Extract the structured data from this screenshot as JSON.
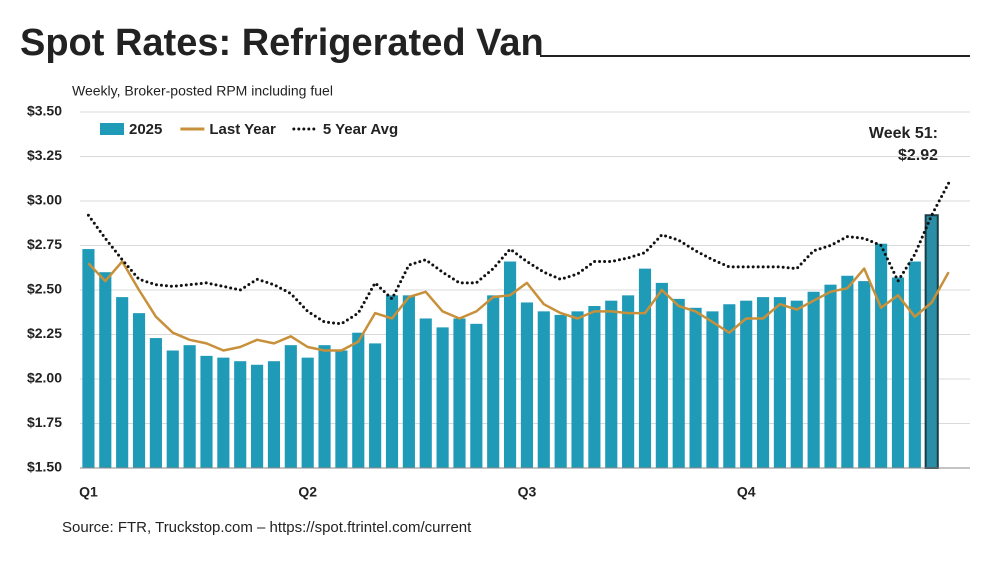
{
  "chart_data": {
    "type": "bar",
    "title": "Spot Rates: Refrigerated Van",
    "subtitle": "Weekly, Broker-posted RPM including fuel",
    "source": "Source: FTR, Truckstop.com – https://spot.ftrintel.com/current",
    "annotation": [
      "Week 51:",
      "$2.92"
    ],
    "categories": [
      "Q1",
      null,
      null,
      null,
      null,
      null,
      null,
      null,
      null,
      null,
      null,
      null,
      null,
      "Q2",
      null,
      null,
      null,
      null,
      null,
      null,
      null,
      null,
      null,
      null,
      null,
      null,
      "Q3",
      null,
      null,
      null,
      null,
      null,
      null,
      null,
      null,
      null,
      null,
      null,
      null,
      "Q4",
      null,
      null,
      null,
      null,
      null,
      null,
      null,
      null,
      null,
      null,
      null,
      null
    ],
    "ylim": [
      1.5,
      3.5
    ],
    "yticks": [
      {
        "value": 1.5,
        "label": "$1.50"
      },
      {
        "value": 1.75,
        "label": "$1.75"
      },
      {
        "value": 2.0,
        "label": "$2.00"
      },
      {
        "value": 2.25,
        "label": "$2.25"
      },
      {
        "value": 2.5,
        "label": "$2.50"
      },
      {
        "value": 2.75,
        "label": "$2.75"
      },
      {
        "value": 3.0,
        "label": "$3.00"
      },
      {
        "value": 3.25,
        "label": "$3.25"
      },
      {
        "value": 3.5,
        "label": "$3.50"
      }
    ],
    "grid": true,
    "legend": "top-left",
    "series": [
      {
        "name": "2025",
        "type": "bar",
        "color": "#1f9bb8",
        "values": [
          2.73,
          2.6,
          2.46,
          2.37,
          2.23,
          2.16,
          2.19,
          2.13,
          2.12,
          2.1,
          2.08,
          2.1,
          2.19,
          2.12,
          2.19,
          2.16,
          2.26,
          2.2,
          2.47,
          2.47,
          2.34,
          2.29,
          2.34,
          2.31,
          2.47,
          2.66,
          2.43,
          2.38,
          2.36,
          2.38,
          2.41,
          2.44,
          2.47,
          2.62,
          2.54,
          2.45,
          2.4,
          2.38,
          2.42,
          2.44,
          2.46,
          2.46,
          2.44,
          2.49,
          2.53,
          2.58,
          2.55,
          2.76,
          2.57,
          2.66,
          2.92,
          null
        ]
      },
      {
        "name": "Last Year",
        "type": "line",
        "color": "#c8903a",
        "values": [
          2.65,
          2.55,
          2.66,
          2.5,
          2.35,
          2.26,
          2.22,
          2.2,
          2.16,
          2.18,
          2.22,
          2.2,
          2.24,
          2.18,
          2.16,
          2.16,
          2.21,
          2.37,
          2.34,
          2.46,
          2.49,
          2.38,
          2.34,
          2.38,
          2.46,
          2.47,
          2.54,
          2.42,
          2.37,
          2.34,
          2.38,
          2.38,
          2.37,
          2.37,
          2.5,
          2.41,
          2.38,
          2.32,
          2.26,
          2.34,
          2.34,
          2.42,
          2.39,
          2.44,
          2.49,
          2.51,
          2.62,
          2.4,
          2.47,
          2.35,
          2.43,
          2.6
        ]
      },
      {
        "name": "5 Year Avg",
        "type": "dotted",
        "color": "#111111",
        "values": [
          2.92,
          2.79,
          2.67,
          2.56,
          2.53,
          2.52,
          2.53,
          2.54,
          2.52,
          2.5,
          2.56,
          2.53,
          2.48,
          2.38,
          2.32,
          2.31,
          2.37,
          2.54,
          2.45,
          2.64,
          2.67,
          2.6,
          2.54,
          2.54,
          2.62,
          2.73,
          2.66,
          2.6,
          2.56,
          2.59,
          2.66,
          2.66,
          2.68,
          2.71,
          2.81,
          2.78,
          2.72,
          2.67,
          2.63,
          2.63,
          2.63,
          2.63,
          2.62,
          2.72,
          2.75,
          2.8,
          2.79,
          2.75,
          2.55,
          2.7,
          2.92,
          3.1
        ]
      }
    ]
  }
}
